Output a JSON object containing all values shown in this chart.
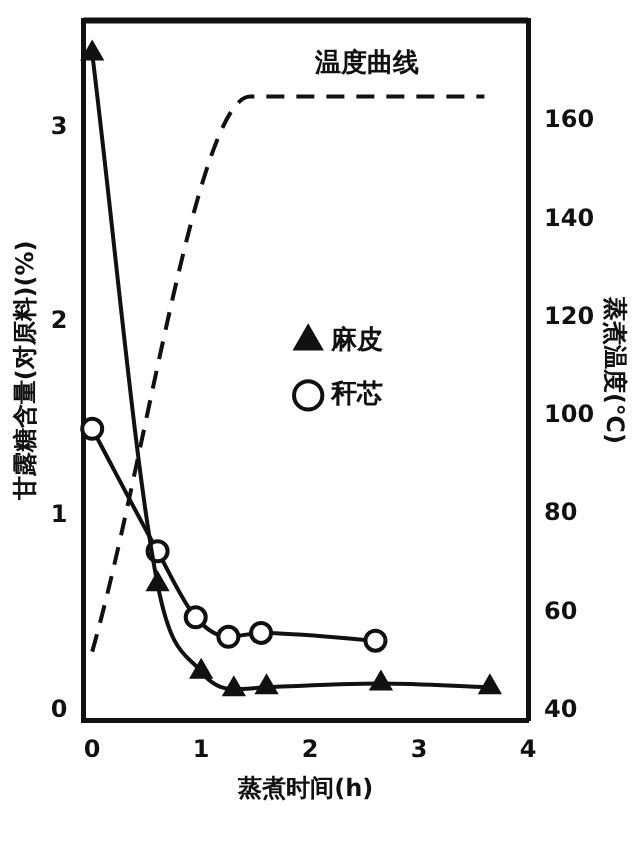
{
  "chart_data": {
    "type": "line",
    "xlabel": "蒸煮时间(h)",
    "ylabel": "甘露糖含量(对原料)(%)",
    "y2label": "蒸煮温度(℃)",
    "xlim": [
      -0.08,
      4
    ],
    "xticks": [
      0,
      1,
      2,
      3,
      4
    ],
    "ylim": [
      -0.05,
      3.55
    ],
    "yticks": [
      0,
      1,
      2,
      3
    ],
    "y2lim": [
      38,
      180.5
    ],
    "y2ticks": [
      40,
      60,
      80,
      100,
      120,
      140,
      160
    ],
    "grid": false,
    "legend": "right",
    "series": [
      {
        "name": "麻皮",
        "color": "#111111",
        "marker": "triangle",
        "line_style": "solid",
        "x": [
          0,
          0.6,
          1.0,
          1.3,
          1.6,
          2.65,
          3.65
        ],
        "values": [
          3.38,
          0.65,
          0.2,
          0.11,
          0.12,
          0.14,
          0.12
        ]
      },
      {
        "name": "秆芯",
        "color": "#111111",
        "marker": "circle",
        "line_style": "solid",
        "x": [
          0,
          0.6,
          0.95,
          1.25,
          1.55,
          2.6
        ],
        "values": [
          1.45,
          0.82,
          0.48,
          0.38,
          0.4,
          0.36
        ]
      },
      {
        "name": "温度曲线",
        "color": "#111111",
        "marker": "none",
        "line_style": "dashed",
        "axis": "y2",
        "x": [
          0,
          1.45,
          3.6
        ],
        "values": [
          52,
          165,
          165
        ]
      }
    ]
  }
}
